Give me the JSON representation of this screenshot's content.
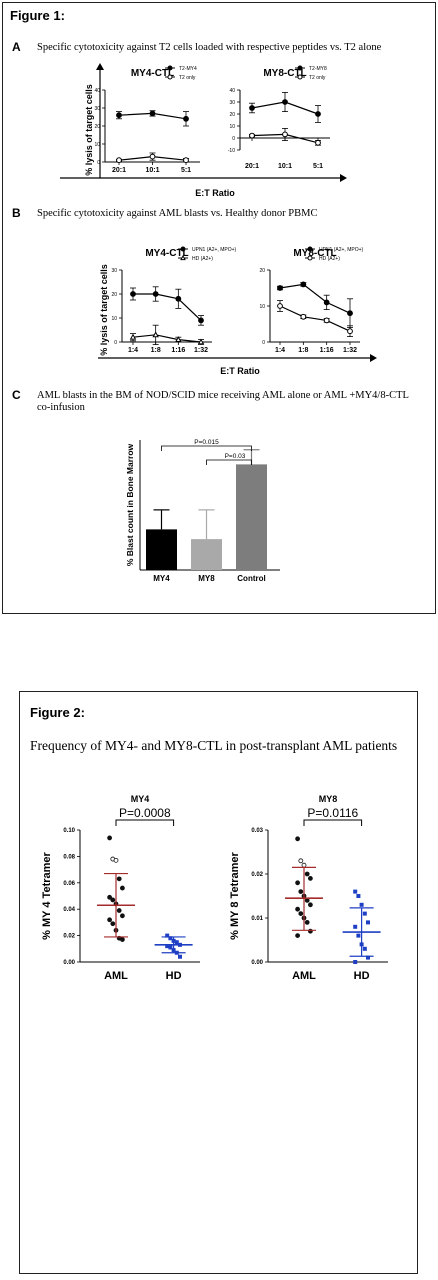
{
  "figure1": {
    "title": "Figure 1:",
    "panelA": {
      "letter": "A",
      "desc": "Specific cytotoxicity against T2 cells loaded with respective peptides vs. T2 alone",
      "ylabel": "% lysis of target cells",
      "xlabel": "E:T Ratio"
    },
    "panelB": {
      "letter": "B",
      "desc": "Specific cytotoxicity against AML blasts vs. Healthy donor PBMC",
      "ylabel": "% lysis of target cells",
      "xlabel": "E:T Ratio"
    },
    "panelC": {
      "letter": "C",
      "desc_line1": "AML blasts in the BM of NOD/SCID mice  receiving AML alone or AML +MY4/8-CTL",
      "desc_line2": "co-infusion"
    }
  },
  "figure2": {
    "title": "Figure 2:",
    "subtitle": "Frequency of MY4- and MY8-CTL in post-transplant AML patients"
  },
  "colors": {
    "aml_red": "#a52a2a",
    "hd_blue": "#1f3fc4",
    "black": "#000000",
    "bar_light": "#a9a9a9",
    "bar_dark": "#7d7d7d"
  },
  "chart_data": [
    {
      "id": "A1",
      "type": "line",
      "title": "MY4-CTL",
      "categories": [
        "20:1",
        "10:1",
        "5:1"
      ],
      "ylim": [
        0,
        40
      ],
      "yticks": [
        "0",
        "10",
        "20",
        "30",
        "40"
      ],
      "series": [
        {
          "name": "T2-MY4",
          "marker": "filled",
          "values": [
            26,
            27,
            24
          ],
          "err": [
            2,
            1.5,
            4
          ]
        },
        {
          "name": "T2 only",
          "marker": "open",
          "values": [
            1,
            3,
            1
          ],
          "err": [
            0.5,
            2,
            1
          ]
        }
      ]
    },
    {
      "id": "A2",
      "type": "line",
      "title": "MY8-CTL",
      "categories": [
        "20:1",
        "10:1",
        "5:1"
      ],
      "ylim": [
        -10,
        40
      ],
      "yticks": [
        "-10",
        "0",
        "10",
        "20",
        "30",
        "40"
      ],
      "series": [
        {
          "name": "T2-MY8",
          "marker": "filled",
          "values": [
            25,
            30,
            20
          ],
          "err": [
            4,
            8,
            7
          ]
        },
        {
          "name": "T2 only",
          "marker": "open",
          "values": [
            2,
            3,
            -4
          ],
          "err": [
            1,
            5,
            2
          ]
        }
      ]
    },
    {
      "id": "B1",
      "type": "line",
      "title": "MY4-CTL",
      "categories": [
        "1:4",
        "1:8",
        "1:16",
        "1:32"
      ],
      "ylim": [
        0,
        30
      ],
      "yticks": [
        "0",
        "10",
        "20",
        "30"
      ],
      "series": [
        {
          "name": "UPN1 (A2+, MPO+)",
          "marker": "filled",
          "values": [
            20,
            20,
            18,
            9
          ],
          "err": [
            2.5,
            3,
            4,
            2
          ]
        },
        {
          "name": "HD (A2+)",
          "marker": "open-triangle",
          "values": [
            2,
            3,
            1,
            0
          ],
          "err": [
            1.5,
            4,
            1,
            1
          ]
        }
      ]
    },
    {
      "id": "B2",
      "type": "line",
      "title": "MY8-CTL",
      "categories": [
        "1:4",
        "1:8",
        "1:16",
        "1:32"
      ],
      "ylim": [
        0,
        20
      ],
      "yticks": [
        "0",
        "10",
        "20"
      ],
      "series": [
        {
          "name": "UPN1 (A2+, MPO+)",
          "marker": "filled",
          "values": [
            15,
            16,
            11,
            8
          ],
          "err": [
            0.5,
            0.5,
            2,
            4
          ]
        },
        {
          "name": "HD (A2+)",
          "marker": "open",
          "values": [
            10,
            7,
            6,
            3
          ],
          "err": [
            1.5,
            0.5,
            0.5,
            1.5
          ]
        }
      ]
    },
    {
      "id": "C",
      "type": "bar",
      "ylabel": "% Blast count in Bone Marrow",
      "categories": [
        "MY4",
        "MY8",
        "Control"
      ],
      "values": [
        25,
        19,
        65
      ],
      "err": [
        12,
        18,
        9
      ],
      "ylim": [
        0,
        80
      ],
      "annotations": [
        "P=0.015",
        "P=0.03"
      ]
    },
    {
      "id": "F2a",
      "type": "scatter",
      "title": "MY4",
      "ylabel": "% MY 4 Tetramer",
      "categories": [
        "AML",
        "HD"
      ],
      "ylim": [
        0,
        0.1
      ],
      "yticks": [
        "0.00",
        "0.02",
        "0.04",
        "0.06",
        "0.08",
        "0.10"
      ],
      "pvalue": "P=0.0008",
      "series": [
        {
          "name": "AML",
          "mean": 0.043,
          "sd_low": 0.019,
          "sd_high": 0.067,
          "values": [
            0.094,
            0.078,
            0.077,
            0.063,
            0.056,
            0.049,
            0.047,
            0.044,
            0.039,
            0.035,
            0.032,
            0.029,
            0.024,
            0.018,
            0.017
          ]
        },
        {
          "name": "HD",
          "mean": 0.013,
          "sd_low": 0.007,
          "sd_high": 0.019,
          "values": [
            0.02,
            0.018,
            0.016,
            0.015,
            0.013,
            0.012,
            0.011,
            0.009,
            0.007,
            0.004
          ]
        }
      ]
    },
    {
      "id": "F2b",
      "type": "scatter",
      "title": "MY8",
      "ylabel": "% MY 8 Tetramer",
      "categories": [
        "AML",
        "HD"
      ],
      "ylim": [
        0,
        0.03
      ],
      "yticks": [
        "0.00",
        "0.01",
        "0.02",
        "0.03"
      ],
      "pvalue": "P=0.0116",
      "series": [
        {
          "name": "AML",
          "mean": 0.0145,
          "sd_low": 0.0072,
          "sd_high": 0.0215,
          "values": [
            0.028,
            0.023,
            0.022,
            0.02,
            0.019,
            0.018,
            0.016,
            0.015,
            0.014,
            0.013,
            0.012,
            0.011,
            0.01,
            0.009,
            0.007,
            0.006
          ]
        },
        {
          "name": "HD",
          "mean": 0.0068,
          "sd_low": 0.0013,
          "sd_high": 0.0123,
          "values": [
            0.016,
            0.015,
            0.013,
            0.011,
            0.009,
            0.008,
            0.006,
            0.004,
            0.003,
            0.001,
            0.0
          ]
        }
      ]
    }
  ]
}
